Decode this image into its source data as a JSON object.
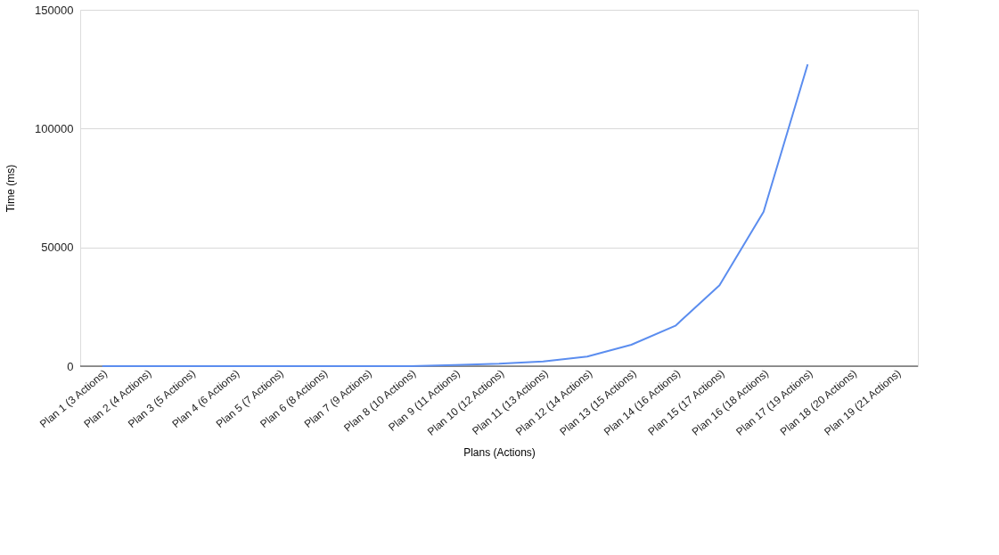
{
  "chart_data": {
    "type": "line",
    "xlabel": "Plans (Actions)",
    "ylabel": "Time (ms)",
    "categories": [
      "Plan 1 (3 Actions)",
      "Plan 2 (4 Actions)",
      "Plan 3 (5 Actions)",
      "Plan 4 (6 Actions)",
      "Plan 5 (7 Actions)",
      "Plan 6 (8 Actions)",
      "Plan 7 (9 Actions)",
      "Plan 8 (10 Actions)",
      "Plan 9 (11 Actions)",
      "Plan 10 (12 Actions)",
      "Plan 11 (13 Actions)",
      "Plan 12 (14 Actions)",
      "Plan 13 (15 Actions)",
      "Plan 14 (16 Actions)",
      "Plan 15 (17 Actions)",
      "Plan 16 (18 Actions)",
      "Plan 17 (19 Actions)",
      "Plan 18 (20 Actions)",
      "Plan 19 (21 Actions)"
    ],
    "series": [
      {
        "color": "#5b8def",
        "values": [
          0,
          0,
          0,
          0,
          0,
          0,
          0,
          0,
          500,
          1000,
          2000,
          4000,
          9000,
          17000,
          34000,
          65000,
          127000,
          null,
          null
        ]
      }
    ],
    "ylim": [
      0,
      150000
    ],
    "yticks": [
      0,
      50000,
      100000,
      150000
    ],
    "grid": "y",
    "legend": false,
    "marker": "none",
    "line_style": "solid"
  }
}
